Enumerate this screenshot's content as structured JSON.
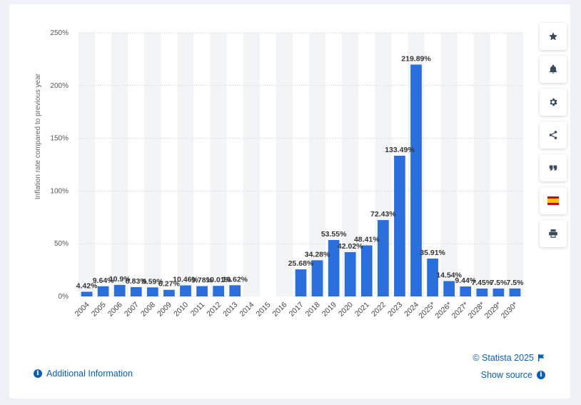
{
  "chart_data": {
    "type": "bar",
    "ylabel": "Inflation rate compared to previous year",
    "ylim": [
      0,
      250
    ],
    "yticks": [
      0,
      50,
      100,
      150,
      200,
      250
    ],
    "ytick_labels": [
      "0%",
      "50%",
      "100%",
      "150%",
      "200%",
      "250%"
    ],
    "categories": [
      "2004",
      "2005",
      "2006",
      "2007",
      "2008",
      "2009",
      "2010",
      "2011",
      "2012",
      "2013",
      "2014",
      "2015",
      "2016",
      "2017",
      "2018",
      "2019",
      "2020",
      "2021",
      "2022",
      "2023",
      "2024",
      "2025*",
      "2026*",
      "2027*",
      "2028*",
      "2029*",
      "2030*"
    ],
    "values": [
      4.42,
      9.64,
      10.9,
      8.83,
      8.59,
      6.27,
      10.46,
      9.78,
      10.01,
      10.62,
      null,
      null,
      null,
      25.68,
      34.28,
      53.55,
      42.02,
      48.41,
      72.43,
      133.49,
      219.89,
      35.91,
      14.54,
      9.44,
      7.45,
      7.5,
      7.5
    ],
    "value_labels": [
      "4.42%",
      "9.64%",
      "10.9%",
      "8.83%",
      "8.59%",
      "6.27%",
      "10.46%",
      "9.78%",
      "10.01%",
      "10.62%",
      "",
      "",
      "",
      "25.68%",
      "34.28%",
      "53.55%",
      "42.02%",
      "48.41%",
      "72.43%",
      "133.49%",
      "219.89%",
      "35.91%",
      "14.54%",
      "9.44%",
      "7.45%",
      "7.5%",
      "7.5%"
    ],
    "grid": true,
    "bar_color": "#2a6fdb"
  },
  "footer": {
    "credit": "© Statista 2025",
    "show_source": "Show source",
    "additional_info": "Additional Information"
  },
  "toolbar": {
    "icons": [
      "star-icon",
      "bell-icon",
      "gear-icon",
      "share-icon",
      "quote-icon",
      "spain-flag-icon",
      "print-icon"
    ]
  }
}
